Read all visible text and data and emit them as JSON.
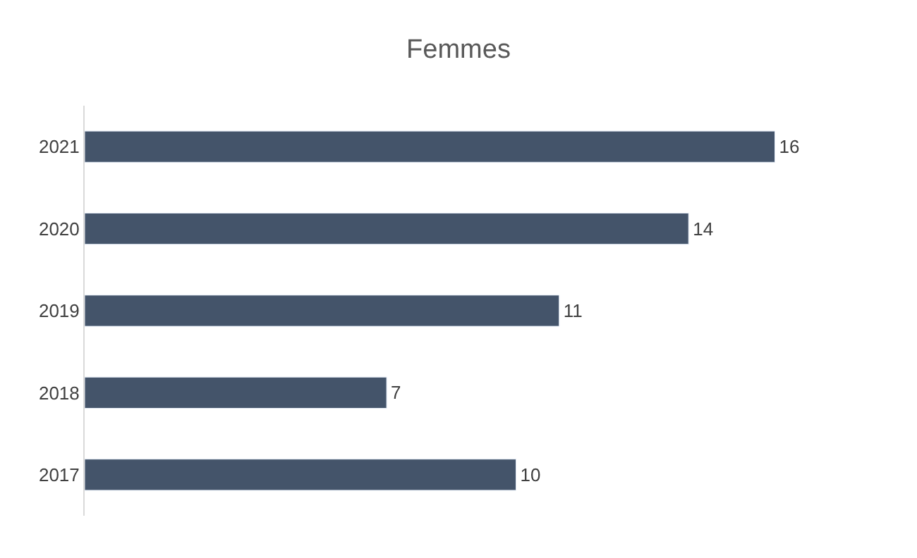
{
  "chart_data": {
    "type": "bar",
    "orientation": "horizontal",
    "title": "Femmes",
    "categories": [
      "2021",
      "2020",
      "2019",
      "2018",
      "2017"
    ],
    "values": [
      16,
      14,
      11,
      7,
      10
    ],
    "color": "#44546a",
    "data_labels": true,
    "tick_labels": "y"
  }
}
